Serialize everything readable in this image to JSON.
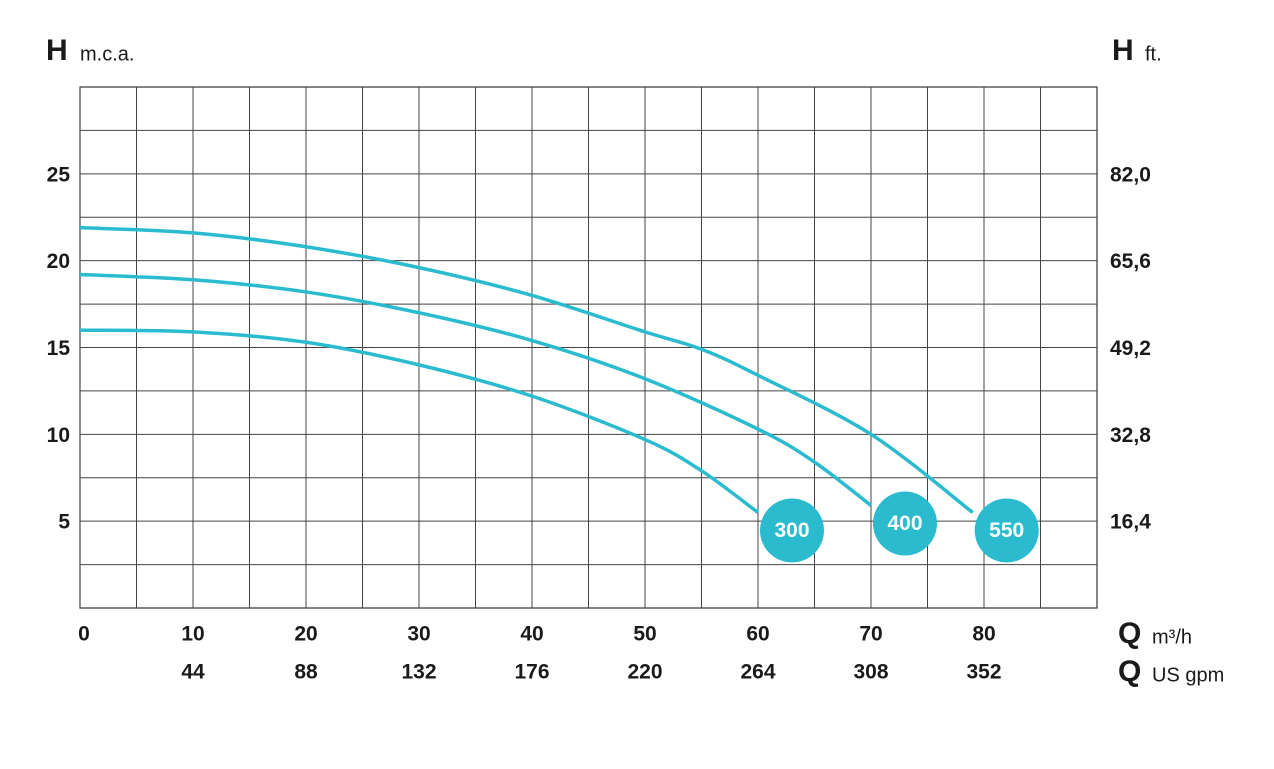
{
  "chart_data": {
    "type": "line",
    "y_label": {
      "symbol": "H",
      "unit": "m.c.a."
    },
    "y2_label": {
      "symbol": "H",
      "unit": "ft."
    },
    "x_label": {
      "symbol": "Q",
      "unit": "m³/h"
    },
    "x2_label": {
      "symbol": "Q",
      "unit": "US gpm"
    },
    "xlim": [
      0,
      90
    ],
    "xticks": [
      0,
      10,
      20,
      30,
      40,
      50,
      60,
      70,
      80
    ],
    "x_minor_ticks": [
      5,
      15,
      25,
      35,
      45,
      55,
      65,
      75,
      85
    ],
    "x2lim": [
      0,
      396
    ],
    "x2ticks": [
      44,
      88,
      132,
      176,
      220,
      264,
      308,
      352
    ],
    "ylim": [
      0,
      30
    ],
    "yticks": [
      5,
      10,
      15,
      20,
      25
    ],
    "y_minor_ticks": [
      2.5,
      7.5,
      12.5,
      17.5,
      22.5,
      27.5
    ],
    "y2lim": [
      0,
      98.4
    ],
    "y2ticks": [
      {
        "value": 16.4,
        "label": "16,4"
      },
      {
        "value": 32.8,
        "label": "32,8"
      },
      {
        "value": 49.2,
        "label": "49,2"
      },
      {
        "value": 65.6,
        "label": "65,6"
      },
      {
        "value": 82.0,
        "label": "82,0"
      }
    ],
    "grid": true,
    "series": [
      {
        "name": "300",
        "color": "#2bbbcf",
        "x": [
          0,
          10,
          20,
          30,
          40,
          50,
          55,
          60
        ],
        "values": [
          16.0,
          15.9,
          15.3,
          14.0,
          12.2,
          9.7,
          7.9,
          5.5
        ]
      },
      {
        "name": "400",
        "color": "#2bbbcf",
        "x": [
          0,
          10,
          20,
          30,
          40,
          50,
          60,
          65,
          70
        ],
        "values": [
          19.2,
          18.9,
          18.2,
          17.0,
          15.4,
          13.2,
          10.3,
          8.4,
          5.9
        ]
      },
      {
        "name": "550",
        "color": "#2bbbcf",
        "x": [
          0,
          10,
          20,
          30,
          40,
          50,
          55,
          60,
          70,
          79
        ],
        "values": [
          21.9,
          21.6,
          20.8,
          19.6,
          18.0,
          15.9,
          14.9,
          13.4,
          10.0,
          5.5
        ]
      }
    ]
  }
}
